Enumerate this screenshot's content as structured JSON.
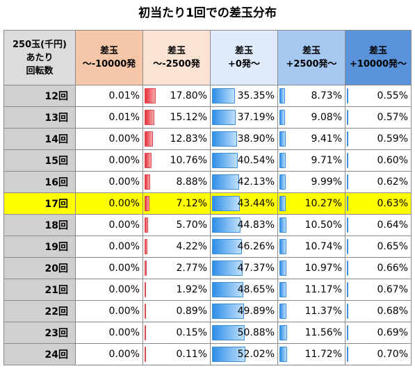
{
  "title": "初当たり1回での差玉分布",
  "colors": {
    "header_bg": [
      "#f5c6a8",
      "#fbe3d4",
      "#dfeafa",
      "#a7c8f0",
      "#5b93da"
    ],
    "highlight": "#ffff00",
    "row_label_bg": "#d0d0d0"
  },
  "chart_data": {
    "type": "table",
    "row_header_lines": [
      "250玉(千円)",
      "あたり",
      "回転数"
    ],
    "columns": [
      {
        "lines": [
          "差玉",
          "～-10000発"
        ],
        "bar": "none"
      },
      {
        "lines": [
          "差玉",
          "～-2500発"
        ],
        "bar": "red"
      },
      {
        "lines": [
          "差玉",
          "+0発～"
        ],
        "bar": "blue"
      },
      {
        "lines": [
          "差玉",
          "+2500発～"
        ],
        "bar": "blue"
      },
      {
        "lines": [
          "差玉",
          "+10000発～"
        ],
        "bar": "blue"
      }
    ],
    "highlight_row": "17回",
    "rows": [
      {
        "label": "12回",
        "values": [
          "0.01%",
          "17.80%",
          "35.35%",
          "8.73%",
          "0.55%"
        ]
      },
      {
        "label": "13回",
        "values": [
          "0.01%",
          "15.12%",
          "37.19%",
          "9.08%",
          "0.57%"
        ]
      },
      {
        "label": "14回",
        "values": [
          "0.00%",
          "12.83%",
          "38.90%",
          "9.41%",
          "0.59%"
        ]
      },
      {
        "label": "15回",
        "values": [
          "0.00%",
          "10.76%",
          "40.54%",
          "9.71%",
          "0.60%"
        ]
      },
      {
        "label": "16回",
        "values": [
          "0.00%",
          "8.88%",
          "42.13%",
          "9.99%",
          "0.62%"
        ]
      },
      {
        "label": "17回",
        "values": [
          "0.00%",
          "7.12%",
          "43.44%",
          "10.27%",
          "0.63%"
        ]
      },
      {
        "label": "18回",
        "values": [
          "0.00%",
          "5.70%",
          "44.83%",
          "10.50%",
          "0.64%"
        ]
      },
      {
        "label": "19回",
        "values": [
          "0.00%",
          "4.22%",
          "46.26%",
          "10.74%",
          "0.65%"
        ]
      },
      {
        "label": "20回",
        "values": [
          "0.00%",
          "2.77%",
          "47.37%",
          "10.97%",
          "0.66%"
        ]
      },
      {
        "label": "21回",
        "values": [
          "0.00%",
          "1.92%",
          "48.65%",
          "11.17%",
          "0.67%"
        ]
      },
      {
        "label": "22回",
        "values": [
          "0.00%",
          "0.89%",
          "49.89%",
          "11.37%",
          "0.68%"
        ]
      },
      {
        "label": "23回",
        "values": [
          "0.00%",
          "0.15%",
          "50.88%",
          "11.56%",
          "0.69%"
        ]
      },
      {
        "label": "24回",
        "values": [
          "0.00%",
          "0.11%",
          "52.02%",
          "11.72%",
          "0.70%"
        ]
      }
    ]
  }
}
